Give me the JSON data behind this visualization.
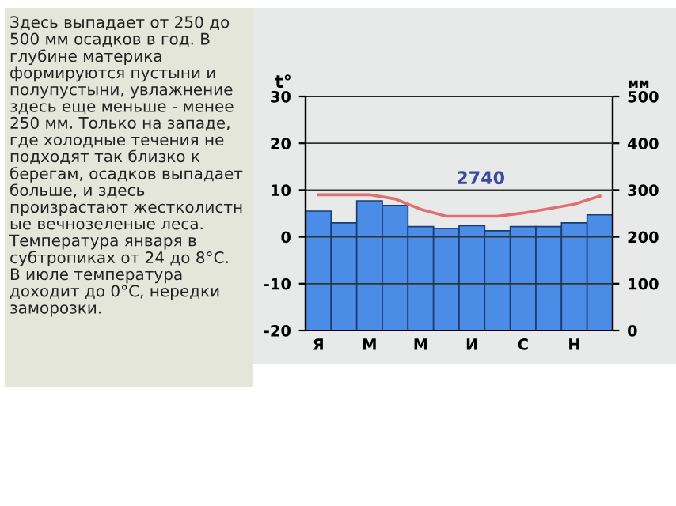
{
  "chart_data": {
    "type": "bar",
    "ylabel": "t°",
    "y2label": "мм",
    "categories": [
      "Я",
      null,
      "М",
      null,
      "М",
      null,
      "И",
      null,
      "С",
      null,
      "Н",
      null
    ],
    "series": [
      {
        "axis": "y2",
        "color": "#4a8ce6",
        "values": [
          255,
          230,
          277,
          267,
          222,
          218,
          224,
          213,
          222,
          222,
          230,
          247
        ]
      },
      {
        "type": "line",
        "axis": "y",
        "color": "#e07070",
        "values": [
          9,
          9,
          9,
          8.1,
          5.9,
          4.4,
          4.4,
          4.4,
          5.1,
          6,
          7,
          8.7
        ]
      }
    ],
    "ylim": [
      -20,
      30
    ],
    "yticks": [
      -20,
      -10,
      0,
      10,
      20,
      30
    ],
    "y2lim": [
      0,
      500
    ],
    "y2ticks": [
      0,
      100,
      200,
      300,
      400,
      500
    ],
    "grid": "y",
    "marker": "none",
    "line_style": "solid",
    "annotations": [
      "Здесь выпадает от 250 до\n500 мм осадков в год. В\nглубине материка\nформируются пустыни и\nполупустыни, увлажнение\nздесь еще меньше - менее\n250 мм. Только на западе,\nгде холодные течения не\nподходят так близко к\nберегам, осадков выпадает\nбольше, и здесь\nпроизрастают жестколистн\nые вечнозеленые леса.\nТемпература января в\nсубтропиках от 24 до 8°С.\nВ июле температура\nдоходит до 0°С, нередки\nзаморозки.",
      "2740"
    ]
  }
}
